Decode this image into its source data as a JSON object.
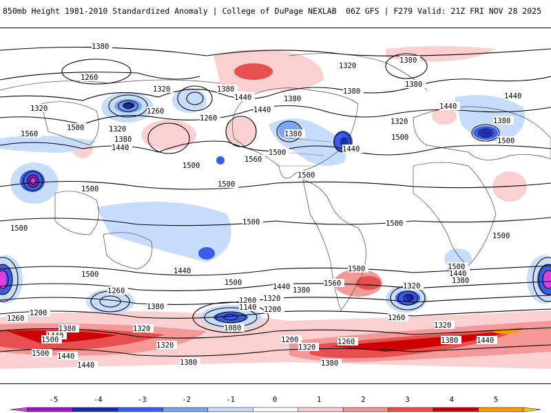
{
  "header": {
    "title": "850mb Height 1981-2010 Standardized Anomaly | College of DuPage NEXLAB",
    "run_info": "06Z GFS | F279 Valid: 21Z FRI NOV 28 2025"
  },
  "map": {
    "contour_labels": [
      "1380",
      "1260",
      "1320",
      "1440",
      "1500",
      "1560",
      "1200",
      "1080",
      "1140"
    ]
  },
  "colorbar": {
    "ticks": [
      "-5",
      "-4",
      "-3",
      "-2",
      "-1",
      "0",
      "1",
      "2",
      "3",
      "4",
      "5"
    ],
    "colors": [
      "#e040e0",
      "#9a16c8",
      "#1a2bb0",
      "#3b5ee8",
      "#7aa5f5",
      "#c8ddfb",
      "#ffffff",
      "#fbd0d0",
      "#f59898",
      "#e85050",
      "#cc0000",
      "#f5a000",
      "#f5d000"
    ]
  }
}
